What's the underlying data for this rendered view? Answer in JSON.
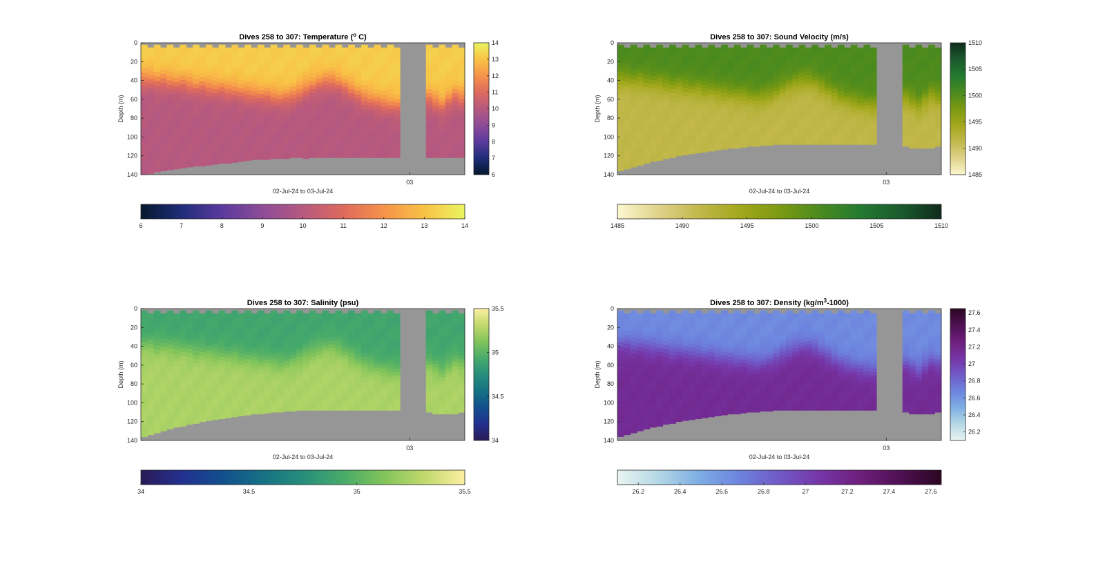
{
  "figure": {
    "background": "#ffffff",
    "nodata_color": "#969696",
    "panels": [
      {
        "id": "temperature",
        "title_html_parts": [
          "Dives 258 to 307: Temperature (",
          "o",
          " C)"
        ],
        "title_sup_index": 1,
        "xlabel": "02-Jul-24 to 03-Jul-24",
        "ylabel": "Depth (m)",
        "xtick_label": "03",
        "colormap": [
          "#04182c",
          "#1f2d7a",
          "#5a3a9d",
          "#8d4c98",
          "#b6597f",
          "#de6a5d",
          "#f6934a",
          "#f9c246",
          "#e9f55f"
        ],
        "cbar_right_ticks": [
          "6",
          "7",
          "8",
          "9",
          "10",
          "11",
          "12",
          "13",
          "14"
        ],
        "cbar_bottom_ticks": [
          "6",
          "7",
          "8",
          "9",
          "10",
          "11",
          "12",
          "13",
          "14"
        ]
      },
      {
        "id": "sound-velocity",
        "title_html_parts": [
          "Dives 258 to 307: Sound Velocity (m/s)"
        ],
        "title_sup_index": -1,
        "xlabel": "02-Jul-24 to 03-Jul-24",
        "ylabel": "Depth (m)",
        "xtick_label": "03",
        "colormap": [
          "#fcf7d0",
          "#e0d28a",
          "#c2b84c",
          "#a4a81d",
          "#7c9a12",
          "#4a8a1e",
          "#237a30",
          "#1b5a2e",
          "#0f2b1c"
        ],
        "cbar_right_ticks": [
          "1485",
          "1490",
          "1495",
          "1500",
          "1505",
          "1510"
        ],
        "cbar_bottom_ticks": [
          "1485",
          "1490",
          "1495",
          "1500",
          "1505",
          "1510"
        ]
      },
      {
        "id": "salinity",
        "title_html_parts": [
          "Dives 258 to 307: Salinity (psu)"
        ],
        "title_sup_index": -1,
        "xlabel": "02-Jul-24 to 03-Jul-24",
        "ylabel": "Depth (m)",
        "xtick_label": "03",
        "colormap": [
          "#291b56",
          "#23308f",
          "#124f8d",
          "#167184",
          "#278e7c",
          "#48ab6a",
          "#82c45a",
          "#c1d96c",
          "#fbefa2"
        ],
        "cbar_right_ticks": [
          "34",
          "34.5",
          "35",
          "35.5"
        ],
        "cbar_bottom_ticks": [
          "34",
          "34.5",
          "35",
          "35.5"
        ]
      },
      {
        "id": "density",
        "title_html_parts": [
          "Dives 258 to 307: Density (kg/m",
          "3",
          "-1000)"
        ],
        "title_sup_index": 1,
        "xlabel": "02-Jul-24 to 03-Jul-24",
        "ylabel": "Depth (m)",
        "xtick_label": "03",
        "colormap": [
          "#e9f4f1",
          "#b5d8e6",
          "#7eaee4",
          "#6d84de",
          "#7059c7",
          "#7635a6",
          "#6e1f7c",
          "#4e1052",
          "#2b0621"
        ],
        "cbar_right_ticks": [
          "26.2",
          "26.4",
          "26.6",
          "26.8",
          "27",
          "27.2",
          "27.4",
          "27.6"
        ],
        "cbar_bottom_ticks": [
          "26.2",
          "26.4",
          "26.6",
          "26.8",
          "27",
          "27.2",
          "27.4",
          "27.6"
        ]
      }
    ]
  },
  "chart_data": [
    {
      "type": "heatmap",
      "title": "Dives 258 to 307: Temperature (o C)",
      "xlabel": "02-Jul-24 to 03-Jul-24",
      "ylabel": "Depth (m)",
      "y_ticks": [
        0,
        20,
        40,
        60,
        80,
        100,
        120,
        140
      ],
      "ylim": [
        0,
        140
      ],
      "y_reversed": true,
      "x_ticks": [
        "03"
      ],
      "colorbar_range": [
        6,
        14
      ],
      "colorbar_ticks": [
        6,
        7,
        8,
        9,
        10,
        11,
        12,
        13,
        14
      ],
      "dives": [
        258,
        307
      ],
      "data_gap_dives": [
        295,
        298
      ],
      "surface_value": 13.2,
      "deep_value": 10.0,
      "thermocline_depth": [
        38,
        38,
        40,
        39,
        41,
        42,
        42,
        44,
        46,
        45,
        47,
        48,
        48,
        50,
        50,
        52,
        53,
        54,
        55,
        55,
        57,
        58,
        57,
        55,
        52,
        48,
        45,
        42,
        40,
        40,
        42,
        46,
        50,
        54,
        58,
        60,
        62,
        64,
        65,
        66,
        0,
        0,
        0,
        0,
        58,
        62,
        66,
        60,
        55,
        58
      ],
      "max_depth": [
        140,
        139,
        137,
        136,
        135,
        134,
        133,
        132,
        131,
        131,
        130,
        129,
        128,
        128,
        127,
        126,
        125,
        124,
        124,
        124,
        123,
        123,
        123,
        122,
        122,
        123,
        122,
        122,
        122,
        122,
        122,
        122,
        122,
        122,
        122,
        122,
        122,
        122,
        122,
        122,
        0,
        0,
        0,
        0,
        122,
        122,
        122,
        122,
        122,
        122
      ]
    },
    {
      "type": "heatmap",
      "title": "Dives 258 to 307: Sound Velocity (m/s)",
      "xlabel": "02-Jul-24 to 03-Jul-24",
      "ylabel": "Depth (m)",
      "y_ticks": [
        0,
        20,
        40,
        60,
        80,
        100,
        120,
        140
      ],
      "ylim": [
        0,
        140
      ],
      "y_reversed": true,
      "x_ticks": [
        "03"
      ],
      "colorbar_range": [
        1485,
        1510
      ],
      "colorbar_ticks": [
        1485,
        1490,
        1495,
        1500,
        1505,
        1510
      ],
      "dives": [
        258,
        307
      ],
      "data_gap_dives": [
        296,
        299
      ],
      "surface_value": 1500.5,
      "deep_value": 1491.5,
      "thermocline_depth": [
        38,
        38,
        40,
        39,
        41,
        42,
        42,
        44,
        46,
        45,
        47,
        48,
        48,
        50,
        50,
        52,
        53,
        54,
        55,
        55,
        57,
        58,
        57,
        55,
        52,
        48,
        45,
        42,
        40,
        40,
        42,
        46,
        50,
        54,
        58,
        60,
        62,
        64,
        65,
        66,
        0,
        0,
        0,
        0,
        58,
        62,
        66,
        60,
        55,
        58
      ],
      "max_depth": [
        136,
        134,
        132,
        130,
        128,
        126,
        125,
        123,
        122,
        120,
        119,
        118,
        117,
        116,
        115,
        114,
        113,
        112,
        112,
        111,
        110,
        110,
        109,
        109,
        108,
        108,
        108,
        108,
        108,
        108,
        108,
        108,
        108,
        108,
        108,
        108,
        108,
        108,
        108,
        108,
        0,
        0,
        0,
        0,
        110,
        112,
        112,
        112,
        112,
        110
      ]
    },
    {
      "type": "heatmap",
      "title": "Dives 258 to 307: Salinity (psu)",
      "xlabel": "02-Jul-24 to 03-Jul-24",
      "ylabel": "Depth (m)",
      "y_ticks": [
        0,
        20,
        40,
        60,
        80,
        100,
        120,
        140
      ],
      "ylim": [
        0,
        140
      ],
      "y_reversed": true,
      "x_ticks": [
        "03"
      ],
      "colorbar_range": [
        34,
        35.5
      ],
      "colorbar_ticks": [
        34,
        34.5,
        35,
        35.5
      ],
      "dives": [
        258,
        307
      ],
      "data_gap_dives": [
        295,
        298
      ],
      "surface_value": 34.9,
      "deep_value": 35.25,
      "thermocline_depth": [
        38,
        38,
        40,
        39,
        41,
        42,
        42,
        44,
        46,
        45,
        47,
        48,
        48,
        50,
        50,
        52,
        53,
        54,
        55,
        55,
        57,
        58,
        57,
        55,
        52,
        48,
        45,
        42,
        40,
        40,
        42,
        46,
        50,
        54,
        58,
        60,
        62,
        64,
        65,
        66,
        0,
        0,
        0,
        0,
        58,
        62,
        66,
        60,
        55,
        58
      ],
      "max_depth": [
        136,
        134,
        132,
        130,
        128,
        126,
        125,
        123,
        122,
        120,
        119,
        118,
        117,
        116,
        115,
        114,
        113,
        112,
        112,
        111,
        110,
        110,
        109,
        109,
        108,
        108,
        108,
        108,
        108,
        108,
        108,
        108,
        108,
        108,
        108,
        108,
        108,
        108,
        108,
        108,
        0,
        0,
        0,
        0,
        110,
        112,
        112,
        112,
        112,
        110
      ]
    },
    {
      "type": "heatmap",
      "title": "Dives 258 to 307: Density (kg/m3-1000)",
      "xlabel": "02-Jul-24 to 03-Jul-24",
      "ylabel": "Depth (m)",
      "y_ticks": [
        0,
        20,
        40,
        60,
        80,
        100,
        120,
        140
      ],
      "ylim": [
        0,
        140
      ],
      "y_reversed": true,
      "x_ticks": [
        "03"
      ],
      "colorbar_range": [
        26.1,
        27.65
      ],
      "colorbar_ticks": [
        26.2,
        26.4,
        26.6,
        26.8,
        27,
        27.2,
        27.4,
        27.6
      ],
      "dives": [
        258,
        307
      ],
      "data_gap_dives": [
        296,
        299
      ],
      "surface_value": 26.65,
      "deep_value": 27.15,
      "thermocline_depth": [
        38,
        38,
        40,
        39,
        41,
        42,
        42,
        44,
        46,
        45,
        47,
        48,
        48,
        50,
        50,
        52,
        53,
        54,
        55,
        55,
        57,
        58,
        57,
        55,
        52,
        48,
        45,
        42,
        40,
        40,
        42,
        46,
        50,
        54,
        58,
        60,
        62,
        64,
        65,
        66,
        0,
        0,
        0,
        0,
        58,
        62,
        66,
        60,
        55,
        58
      ],
      "max_depth": [
        136,
        134,
        132,
        130,
        128,
        126,
        125,
        123,
        122,
        120,
        119,
        118,
        117,
        116,
        115,
        114,
        113,
        112,
        112,
        111,
        110,
        110,
        109,
        109,
        108,
        108,
        108,
        108,
        108,
        108,
        108,
        108,
        108,
        108,
        108,
        108,
        108,
        108,
        108,
        108,
        0,
        0,
        0,
        0,
        110,
        112,
        112,
        112,
        112,
        110
      ]
    }
  ]
}
